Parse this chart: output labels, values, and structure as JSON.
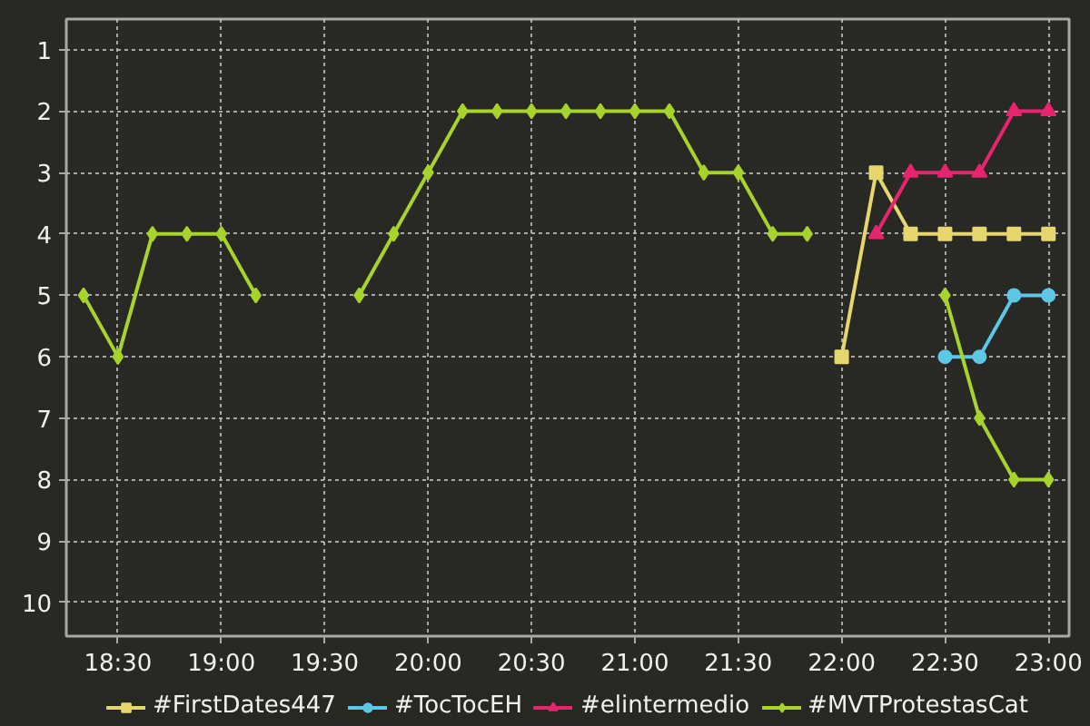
{
  "chart_data": {
    "type": "line",
    "x": [
      18.3333,
      18.5,
      18.6667,
      18.8333,
      19,
      19.1667,
      19.3333,
      19.5,
      19.6667,
      19.8333,
      20,
      20.1667,
      20.3333,
      20.5,
      20.6667,
      20.8333,
      21,
      21.1667,
      21.3333,
      21.5,
      21.6667,
      21.8333,
      22,
      22.1667,
      22.3333,
      22.5,
      22.6667,
      22.8333,
      23
    ],
    "series": [
      {
        "name": "#FirstDates447",
        "color": "#e6d66e",
        "marker": "square",
        "values": [
          null,
          null,
          null,
          null,
          null,
          null,
          null,
          null,
          null,
          null,
          null,
          null,
          null,
          null,
          null,
          null,
          null,
          null,
          null,
          null,
          null,
          null,
          6,
          3,
          4,
          4,
          4,
          4,
          4
        ]
      },
      {
        "name": "#TocTocEH",
        "color": "#5cc8e6",
        "marker": "circle",
        "values": [
          null,
          null,
          null,
          null,
          null,
          null,
          null,
          null,
          null,
          null,
          null,
          null,
          null,
          null,
          null,
          null,
          null,
          null,
          null,
          null,
          null,
          null,
          null,
          null,
          null,
          6,
          6,
          5,
          5
        ]
      },
      {
        "name": "#elintermedio",
        "color": "#e8246e",
        "marker": "triangle",
        "values": [
          null,
          null,
          null,
          null,
          null,
          null,
          null,
          null,
          null,
          null,
          null,
          null,
          null,
          null,
          null,
          null,
          null,
          null,
          null,
          null,
          null,
          null,
          null,
          4,
          3,
          3,
          3,
          2,
          2
        ]
      },
      {
        "name": "#MVTProtestasCat",
        "color": "#a6d42a",
        "marker": "diamond",
        "values": [
          5,
          6,
          4,
          4,
          4,
          5,
          null,
          null,
          5,
          4,
          3,
          2,
          2,
          2,
          2,
          2,
          2,
          2,
          3,
          3,
          4,
          4,
          null,
          null,
          null,
          5,
          7,
          8,
          8
        ]
      }
    ],
    "xlim": [
      18.25,
      23.1
    ],
    "ylim": [
      10.55,
      0.5
    ],
    "xticks": [
      {
        "value": 18.5,
        "label": "18:30"
      },
      {
        "value": 19,
        "label": "19:00"
      },
      {
        "value": 19.5,
        "label": "19:30"
      },
      {
        "value": 20,
        "label": "20:00"
      },
      {
        "value": 20.5,
        "label": "20:30"
      },
      {
        "value": 21,
        "label": "21:00"
      },
      {
        "value": 21.5,
        "label": "21:30"
      },
      {
        "value": 22,
        "label": "22:00"
      },
      {
        "value": 22.5,
        "label": "22:30"
      },
      {
        "value": 23,
        "label": "23:00"
      }
    ],
    "yticks": [
      1,
      2,
      3,
      4,
      5,
      6,
      7,
      8,
      9,
      10
    ],
    "grid": true,
    "legend": "bottom"
  }
}
